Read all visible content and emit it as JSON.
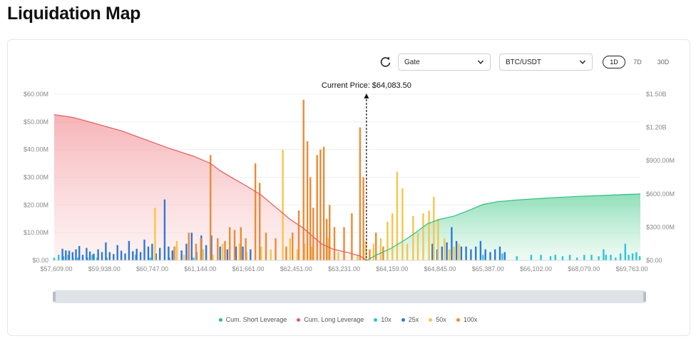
{
  "page": {
    "title": "Liquidation Map"
  },
  "controls": {
    "exchange": "Gate",
    "pair": "BTC/USDT",
    "timeframes": [
      {
        "label": "1D",
        "active": true
      },
      {
        "label": "7D",
        "active": false
      },
      {
        "label": "30D",
        "active": false
      }
    ]
  },
  "colors": {
    "short": "#2fbd83",
    "long": "#e55a5a",
    "x10": "#28c7d6",
    "x25": "#2f78d6",
    "x50": "#f5c64a",
    "x100": "#ec8a35"
  },
  "chart_data": {
    "type": "bar",
    "annotation": "Current Price: $64,083.50",
    "current_price": 64083.5,
    "x_tick_labels": [
      "$57,609.00",
      "$59,938.00",
      "$60,747.00",
      "$61,144.00",
      "$61,661.00",
      "$62,451.00",
      "$63,231.00",
      "$64,159.00",
      "$64,845.00",
      "$65,387.00",
      "$66,102.00",
      "$68,079.00",
      "$69,763.00"
    ],
    "left_axis": {
      "ylim": [
        0,
        60
      ],
      "ticks": [
        "$0.00",
        "$10.00M",
        "$20.00M",
        "$30.00M",
        "$40.00M",
        "$50.00M",
        "$60.00M"
      ]
    },
    "right_axis": {
      "ylim": [
        0,
        1500
      ],
      "ticks": [
        "$0.00",
        "$300.00M",
        "$600.00M",
        "$900.00M",
        "$1.20B",
        "$1.50B"
      ]
    },
    "legend": [
      "Cum. Short Leverage",
      "Cum. Long Leverage",
      "10x",
      "25x",
      "50x",
      "100x"
    ],
    "price_domain": [
      57609,
      69763
    ],
    "bars": {
      "x10": [
        [
          57609,
          1
        ],
        [
          57700,
          2
        ],
        [
          57800,
          1.5
        ],
        [
          57900,
          2
        ],
        [
          58000,
          1
        ],
        [
          58100,
          1
        ],
        [
          58200,
          1.5
        ],
        [
          58300,
          1
        ],
        [
          58400,
          2
        ],
        [
          58500,
          1
        ],
        [
          58700,
          1
        ],
        [
          59000,
          1.5
        ],
        [
          59300,
          2
        ],
        [
          59600,
          1
        ],
        [
          60000,
          1
        ],
        [
          60500,
          1
        ],
        [
          66500,
          2
        ],
        [
          66900,
          2.5
        ],
        [
          67200,
          1.5
        ],
        [
          67500,
          2
        ],
        [
          67700,
          2
        ],
        [
          67900,
          1.5
        ],
        [
          68000,
          2
        ],
        [
          68150,
          1.5
        ],
        [
          68300,
          2
        ],
        [
          68450,
          1
        ],
        [
          68600,
          2
        ],
        [
          68750,
          2
        ],
        [
          68900,
          1.5
        ],
        [
          69000,
          4
        ],
        [
          69050,
          2
        ],
        [
          69150,
          2
        ],
        [
          69250,
          1
        ],
        [
          69350,
          2.5
        ],
        [
          69450,
          6
        ],
        [
          69520,
          2
        ],
        [
          69600,
          2.5
        ],
        [
          69680,
          3
        ],
        [
          69750,
          1.5
        ]
      ],
      "x25": [
        [
          57780,
          4.2
        ],
        [
          57850,
          3.6
        ],
        [
          57920,
          3.5
        ],
        [
          57990,
          3
        ],
        [
          58060,
          4
        ],
        [
          58130,
          5.2
        ],
        [
          58200,
          2
        ],
        [
          58280,
          4.5
        ],
        [
          58350,
          3.2
        ],
        [
          58430,
          2.4
        ],
        [
          58520,
          4
        ],
        [
          58600,
          3
        ],
        [
          58680,
          6.5
        ],
        [
          58760,
          3
        ],
        [
          58840,
          2.3
        ],
        [
          58920,
          5.5
        ],
        [
          59000,
          3.5
        ],
        [
          59080,
          2.5
        ],
        [
          59160,
          7
        ],
        [
          59240,
          3.3
        ],
        [
          59320,
          4.2
        ],
        [
          59400,
          3
        ],
        [
          59480,
          7.5
        ],
        [
          59560,
          5
        ],
        [
          59640,
          6
        ],
        [
          59720,
          2.5
        ],
        [
          59800,
          4.5
        ],
        [
          59900,
          22
        ],
        [
          59980,
          5
        ],
        [
          60060,
          3.6
        ],
        [
          60150,
          5
        ],
        [
          60250,
          3.6
        ],
        [
          60350,
          6
        ],
        [
          60460,
          10
        ],
        [
          60560,
          3
        ],
        [
          60660,
          9
        ],
        [
          60760,
          5.5
        ],
        [
          60870,
          9
        ],
        [
          61050,
          5
        ],
        [
          61200,
          4
        ],
        [
          61380,
          5
        ],
        [
          61520,
          5
        ],
        [
          61680,
          4
        ],
        [
          65450,
          6
        ],
        [
          65550,
          4
        ],
        [
          65650,
          5
        ],
        [
          65750,
          6.5
        ],
        [
          65850,
          12
        ],
        [
          65950,
          7
        ],
        [
          66050,
          5
        ],
        [
          66150,
          5
        ],
        [
          66250,
          4
        ],
        [
          66350,
          5
        ],
        [
          66450,
          7
        ],
        [
          66550,
          4
        ],
        [
          66650,
          3
        ],
        [
          66750,
          4
        ],
        [
          66850,
          5
        ],
        [
          66950,
          3
        ]
      ],
      "x50": [
        [
          59700,
          19
        ],
        [
          60150,
          7
        ],
        [
          60300,
          2
        ],
        [
          60700,
          4
        ],
        [
          60900,
          2
        ],
        [
          61100,
          6
        ],
        [
          61450,
          6
        ],
        [
          61600,
          3
        ],
        [
          61900,
          5
        ],
        [
          62100,
          4
        ],
        [
          62350,
          40
        ],
        [
          62500,
          8
        ],
        [
          62650,
          4
        ],
        [
          62800,
          6
        ],
        [
          62950,
          5
        ],
        [
          63300,
          8
        ],
        [
          63500,
          3
        ],
        [
          63900,
          2
        ],
        [
          64070,
          7
        ],
        [
          64230,
          6
        ],
        [
          64380,
          8
        ],
        [
          64520,
          14
        ],
        [
          64620,
          17
        ],
        [
          64720,
          32
        ],
        [
          64830,
          26
        ],
        [
          64930,
          6
        ],
        [
          65050,
          16
        ],
        [
          65150,
          10
        ],
        [
          65260,
          17
        ],
        [
          65380,
          18
        ],
        [
          65480,
          23
        ],
        [
          65570,
          15
        ],
        [
          65700,
          8
        ],
        [
          65800,
          4
        ],
        [
          65900,
          5
        ],
        [
          66000,
          6
        ]
      ],
      "x100": [
        [
          60100,
          5
        ],
        [
          60400,
          10
        ],
        [
          60550,
          6
        ],
        [
          60650,
          8
        ],
        [
          60850,
          38
        ],
        [
          61000,
          8
        ],
        [
          61150,
          7
        ],
        [
          61250,
          12
        ],
        [
          61350,
          11
        ],
        [
          61480,
          12
        ],
        [
          61580,
          8
        ],
        [
          61780,
          35
        ],
        [
          61870,
          28
        ],
        [
          62000,
          10
        ],
        [
          62200,
          8
        ],
        [
          62420,
          5
        ],
        [
          62550,
          10
        ],
        [
          62680,
          18
        ],
        [
          62780,
          58
        ],
        [
          62860,
          43
        ],
        [
          62920,
          30
        ],
        [
          62980,
          19
        ],
        [
          63060,
          38
        ],
        [
          63130,
          40
        ],
        [
          63200,
          41
        ],
        [
          63260,
          15
        ],
        [
          63320,
          20
        ],
        [
          63420,
          12
        ],
        [
          63620,
          12
        ],
        [
          63780,
          17
        ],
        [
          63950,
          48
        ],
        [
          64020,
          30
        ],
        [
          64150,
          4
        ],
        [
          64280,
          10
        ],
        [
          64430,
          5
        ]
      ]
    },
    "cum_long": [
      [
        57609,
        1315
      ],
      [
        58000,
        1290
      ],
      [
        58500,
        1230
      ],
      [
        59000,
        1170
      ],
      [
        59500,
        1090
      ],
      [
        60000,
        1010
      ],
      [
        60500,
        940
      ],
      [
        60850,
        875
      ],
      [
        61050,
        810
      ],
      [
        61300,
        745
      ],
      [
        61600,
        670
      ],
      [
        61900,
        590
      ],
      [
        62200,
        480
      ],
      [
        62500,
        370
      ],
      [
        62780,
        290
      ],
      [
        62950,
        225
      ],
      [
        63150,
        150
      ],
      [
        63400,
        100
      ],
      [
        63700,
        70
      ],
      [
        63950,
        40
      ],
      [
        64083,
        0
      ]
    ],
    "cum_short": [
      [
        64083,
        0
      ],
      [
        64300,
        50
      ],
      [
        64600,
        110
      ],
      [
        64900,
        190
      ],
      [
        65100,
        250
      ],
      [
        65350,
        330
      ],
      [
        65600,
        370
      ],
      [
        65900,
        400
      ],
      [
        66200,
        450
      ],
      [
        66500,
        505
      ],
      [
        66800,
        530
      ],
      [
        67200,
        545
      ],
      [
        67800,
        562
      ],
      [
        68500,
        578
      ],
      [
        69200,
        590
      ],
      [
        69763,
        600
      ]
    ]
  }
}
